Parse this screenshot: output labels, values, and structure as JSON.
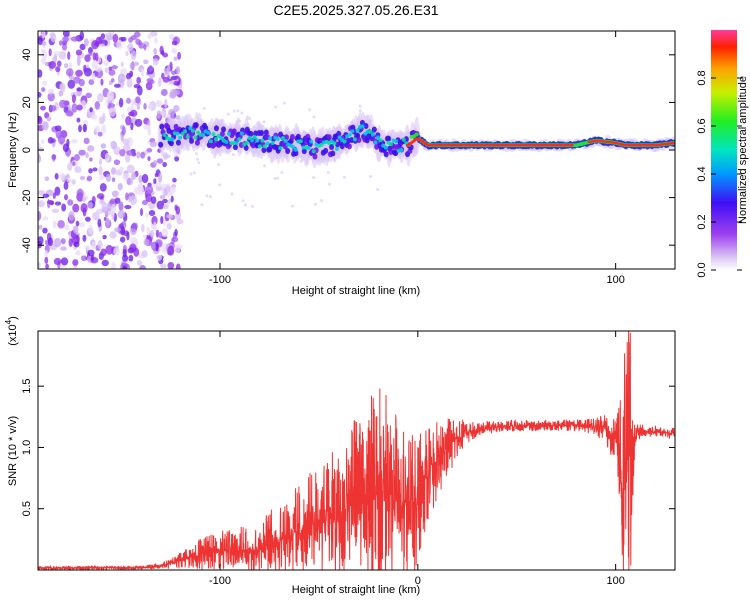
{
  "title": "C2E5.2025.327.05.26.E31",
  "chart_data": [
    {
      "type": "heatmap",
      "name": "spectrogram",
      "xlabel": "Height of straight line (km)",
      "ylabel": "Frequency (Hz)",
      "xlim": [
        -192,
        130
      ],
      "ylim": [
        -50,
        50
      ],
      "x_ticks": [
        -100,
        100
      ],
      "x_tick_labels": [
        "-100",
        "100"
      ],
      "y_ticks": [
        -40,
        -20,
        0,
        20,
        40
      ],
      "y_tick_labels": [
        "-40",
        "-20",
        "0",
        "20",
        "40"
      ],
      "noise_region_x": [
        -192,
        -120
      ],
      "signal_track": {
        "x": [
          -130,
          -120,
          -110,
          -100,
          -90,
          -80,
          -70,
          -60,
          -50,
          -40,
          -30,
          -25,
          -20,
          -15,
          -10,
          -5,
          0,
          5,
          10,
          20,
          40,
          60,
          80,
          90,
          100,
          105,
          110,
          120,
          130
        ],
        "freq": [
          6,
          7,
          7,
          5,
          5,
          4,
          3,
          2,
          1,
          3,
          7,
          8,
          3,
          2,
          2,
          2,
          5,
          2,
          2,
          2,
          2,
          2,
          2,
          4,
          3,
          2,
          2,
          2,
          3
        ]
      },
      "colorbar": {
        "label": "Normalized spectral amplitude",
        "range": [
          0,
          1
        ],
        "ticks": [
          0.0,
          0.2,
          0.4,
          0.6,
          0.8
        ],
        "tick_labels": [
          "0.0",
          "0.2",
          "0.4",
          "0.6",
          "0.8"
        ]
      }
    },
    {
      "type": "line",
      "name": "snr",
      "xlabel": "Height of straight line (km)",
      "ylabel": "SNR (10 * v/v)",
      "y_multiplier": "(x10^4)",
      "y_multiplier_base": "(x10",
      "y_multiplier_exp": "4",
      "y_multiplier_close": ")",
      "color": "#ee3333",
      "xlim": [
        -192,
        130
      ],
      "ylim": [
        0,
        19500
      ],
      "x_ticks": [
        -100,
        0,
        100
      ],
      "x_tick_labels": [
        "-100",
        "0",
        "100"
      ],
      "y_ticks": [
        5000,
        10000,
        15000
      ],
      "y_tick_labels": [
        "0.5",
        "1.0",
        "1.5"
      ],
      "envelope": {
        "x": [
          -192,
          -140,
          -130,
          -120,
          -110,
          -100,
          -90,
          -80,
          -70,
          -60,
          -50,
          -40,
          -35,
          -30,
          -25,
          -20,
          -15,
          -10,
          -5,
          0,
          5,
          10,
          15,
          20,
          25,
          30,
          40,
          50,
          60,
          70,
          80,
          90,
          95,
          100,
          102,
          104,
          105,
          106,
          107,
          108,
          110,
          115,
          120,
          125,
          130
        ],
        "mean": [
          150,
          200,
          300,
          800,
          1300,
          1600,
          1600,
          1700,
          2400,
          3200,
          3800,
          4500,
          5000,
          6000,
          6200,
          7000,
          6000,
          5500,
          5500,
          6000,
          8000,
          9000,
          10000,
          10800,
          11200,
          11500,
          11700,
          11800,
          11800,
          11800,
          11800,
          11700,
          11500,
          11000,
          10000,
          9000,
          8500,
          8500,
          9000,
          10000,
          11200,
          11400,
          11300,
          11200,
          11100
        ],
        "spread": [
          100,
          100,
          150,
          400,
          800,
          1000,
          1200,
          1500,
          2000,
          2500,
          3000,
          3500,
          4000,
          4500,
          5000,
          5500,
          5000,
          4500,
          4000,
          3500,
          2500,
          2000,
          1500,
          1000,
          600,
          400,
          300,
          300,
          300,
          300,
          300,
          500,
          1000,
          1500,
          3000,
          7000,
          9000,
          9000,
          9000,
          7000,
          500,
          300,
          300,
          300,
          300
        ]
      }
    }
  ]
}
